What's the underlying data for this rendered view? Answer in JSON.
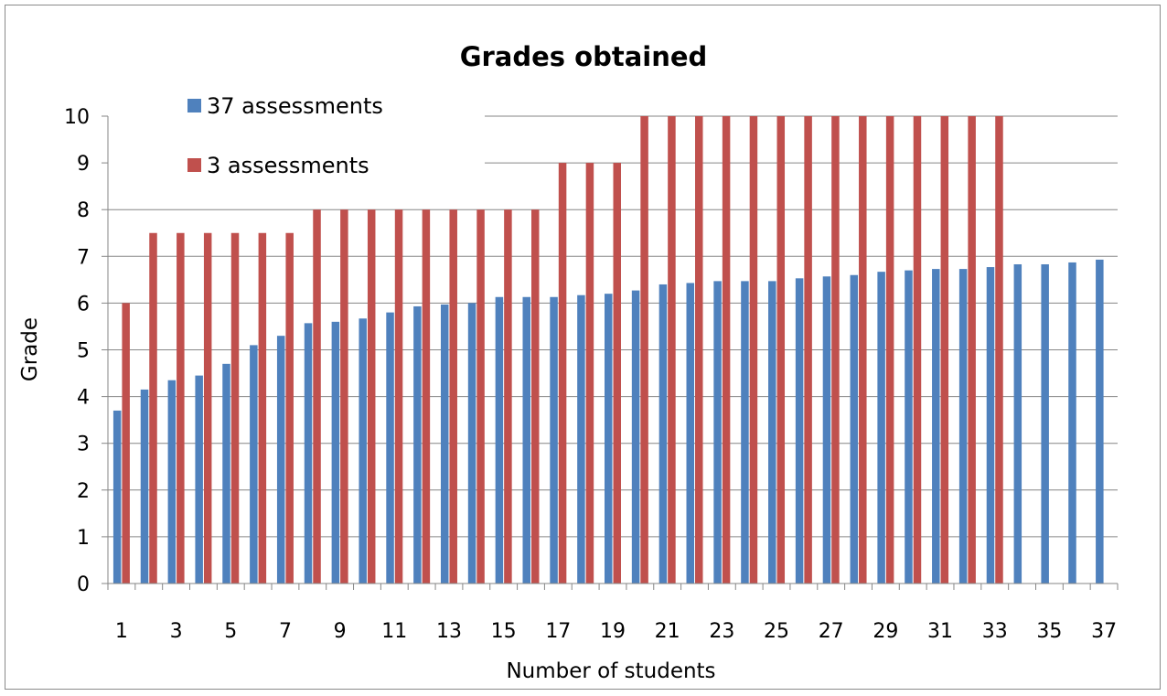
{
  "chart_data": {
    "type": "bar",
    "title": "Grades obtained",
    "xlabel": "Number of students",
    "ylabel": "Grade",
    "ylim": [
      0,
      10
    ],
    "yticks": [
      "0",
      "1",
      "2",
      "3",
      "4",
      "5",
      "6",
      "7",
      "8",
      "9",
      "10"
    ],
    "categories": [
      "1",
      "2",
      "3",
      "4",
      "5",
      "6",
      "7",
      "8",
      "9",
      "10",
      "11",
      "12",
      "13",
      "14",
      "15",
      "16",
      "17",
      "18",
      "19",
      "20",
      "21",
      "22",
      "23",
      "24",
      "25",
      "26",
      "27",
      "28",
      "29",
      "30",
      "31",
      "32",
      "33",
      "34",
      "35",
      "36",
      "37"
    ],
    "xtick_labels": [
      "1",
      "3",
      "5",
      "7",
      "9",
      "11",
      "13",
      "15",
      "17",
      "19",
      "21",
      "23",
      "25",
      "27",
      "29",
      "31",
      "33",
      "35",
      "37"
    ],
    "grid": true,
    "legend_position": "top-left",
    "series": [
      {
        "name": "37 assessments",
        "color": "#4F81BD",
        "values": [
          3.7,
          4.15,
          4.35,
          4.45,
          4.7,
          5.1,
          5.3,
          5.57,
          5.6,
          5.67,
          5.8,
          5.93,
          5.97,
          6.0,
          6.13,
          6.13,
          6.13,
          6.17,
          6.2,
          6.27,
          6.4,
          6.43,
          6.47,
          6.47,
          6.47,
          6.53,
          6.57,
          6.6,
          6.67,
          6.7,
          6.73,
          6.73,
          6.77,
          6.83,
          6.83,
          6.87,
          6.93
        ]
      },
      {
        "name": "3 assessments",
        "color": "#C0504D",
        "values": [
          6.0,
          7.5,
          7.5,
          7.5,
          7.5,
          7.5,
          7.5,
          8.0,
          8.0,
          8.0,
          8.0,
          8.0,
          8.0,
          8.0,
          8.0,
          8.0,
          9.0,
          9.0,
          9.0,
          10.0,
          10.0,
          10.0,
          10.0,
          10.0,
          10.0,
          10.0,
          10.0,
          10.0,
          10.0,
          10.0,
          10.0,
          10.0,
          10.0,
          null,
          null,
          null,
          null
        ]
      }
    ]
  }
}
